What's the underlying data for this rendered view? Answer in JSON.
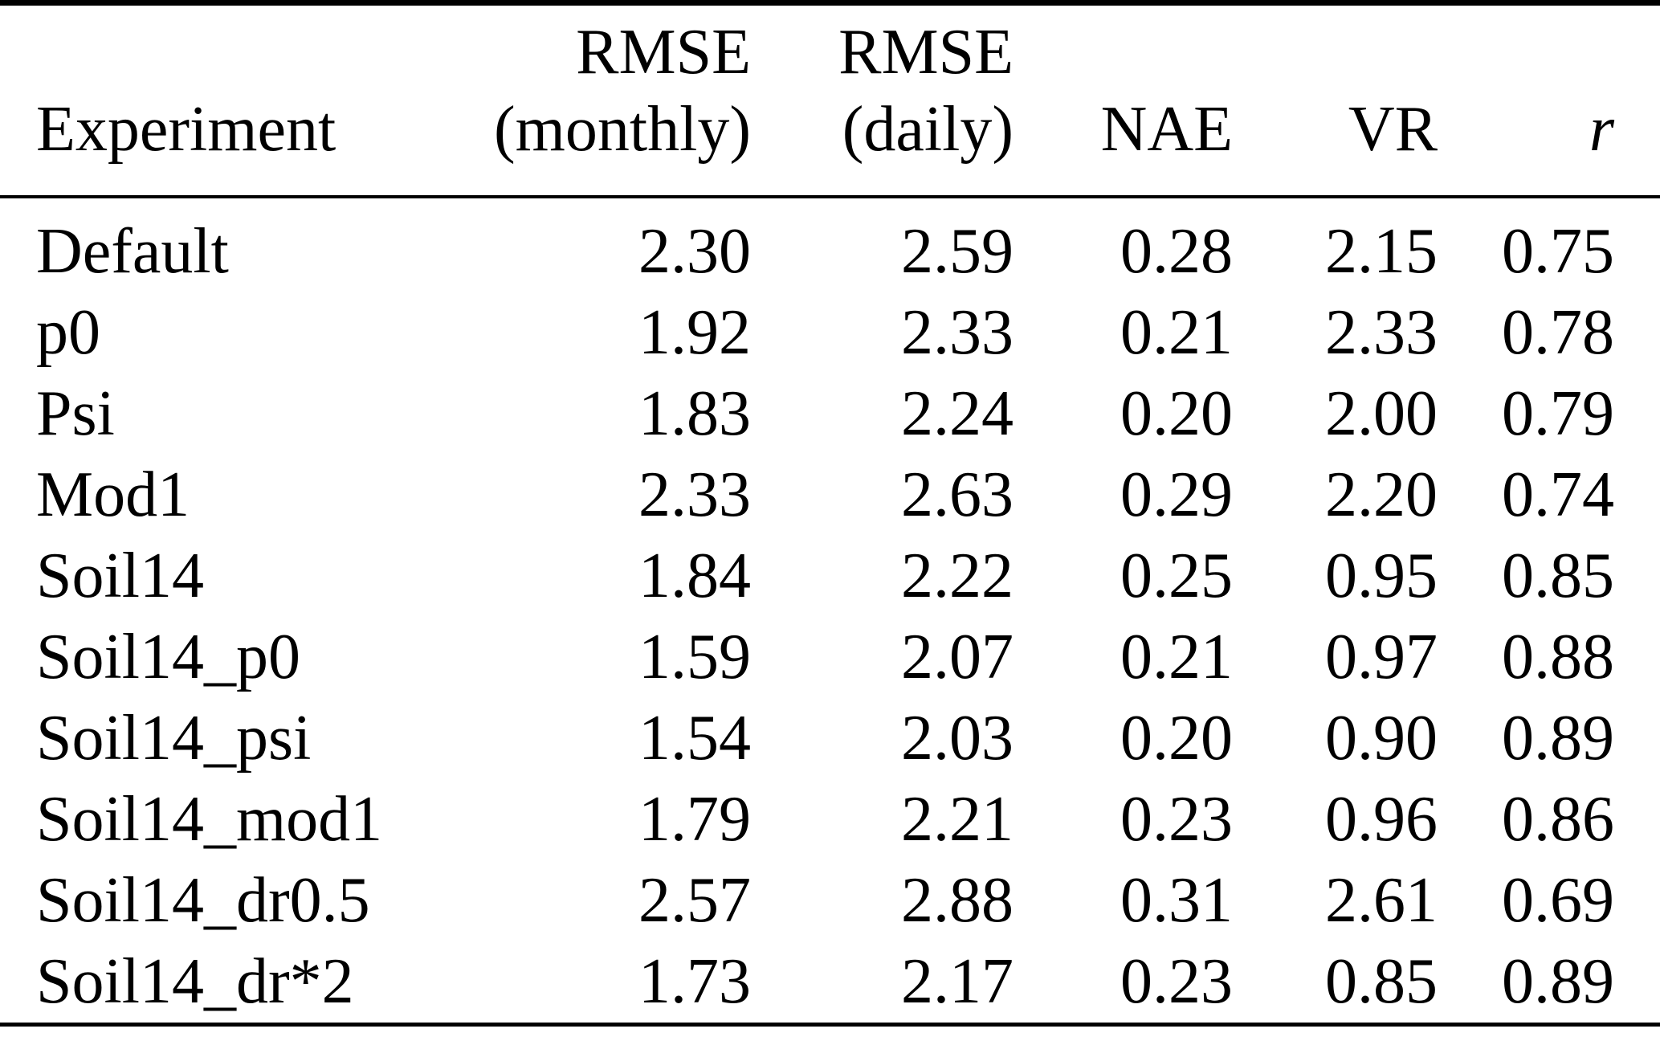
{
  "table": {
    "row_keys": [
      "experiment",
      "rmse_monthly",
      "rmse_daily",
      "nae",
      "vr",
      "r"
    ],
    "columns": [
      {
        "line1": "",
        "line2": "Experiment"
      },
      {
        "line1": "RMSE",
        "line2": "(monthly)"
      },
      {
        "line1": "RMSE",
        "line2": "(daily)"
      },
      {
        "line1": "",
        "line2": "NAE"
      },
      {
        "line1": "",
        "line2": "VR"
      },
      {
        "line1": "",
        "line2": "r"
      }
    ],
    "rows": [
      {
        "experiment": "Default",
        "rmse_monthly": "2.30",
        "rmse_daily": "2.59",
        "nae": "0.28",
        "vr": "2.15",
        "r": "0.75"
      },
      {
        "experiment": "p0",
        "rmse_monthly": "1.92",
        "rmse_daily": "2.33",
        "nae": "0.21",
        "vr": "2.33",
        "r": "0.78"
      },
      {
        "experiment": "Psi",
        "rmse_monthly": "1.83",
        "rmse_daily": "2.24",
        "nae": "0.20",
        "vr": "2.00",
        "r": "0.79"
      },
      {
        "experiment": "Mod1",
        "rmse_monthly": "2.33",
        "rmse_daily": "2.63",
        "nae": "0.29",
        "vr": "2.20",
        "r": "0.74"
      },
      {
        "experiment": "Soil14",
        "rmse_monthly": "1.84",
        "rmse_daily": "2.22",
        "nae": "0.25",
        "vr": "0.95",
        "r": "0.85"
      },
      {
        "experiment": "Soil14_p0",
        "rmse_monthly": "1.59",
        "rmse_daily": "2.07",
        "nae": "0.21",
        "vr": "0.97",
        "r": "0.88"
      },
      {
        "experiment": "Soil14_psi",
        "rmse_monthly": "1.54",
        "rmse_daily": "2.03",
        "nae": "0.20",
        "vr": "0.90",
        "r": "0.89"
      },
      {
        "experiment": "Soil14_mod1",
        "rmse_monthly": "1.79",
        "rmse_daily": "2.21",
        "nae": "0.23",
        "vr": "0.96",
        "r": "0.86"
      },
      {
        "experiment": "Soil14_dr0.5",
        "rmse_monthly": "2.57",
        "rmse_daily": "2.88",
        "nae": "0.31",
        "vr": "2.61",
        "r": "0.69"
      },
      {
        "experiment": "Soil14_dr*2",
        "rmse_monthly": "1.73",
        "rmse_daily": "2.17",
        "nae": "0.23",
        "vr": "0.85",
        "r": "0.89"
      }
    ]
  },
  "styles": {
    "text_color": "#000000",
    "background_color": "#ffffff",
    "rule_color": "#000000"
  }
}
